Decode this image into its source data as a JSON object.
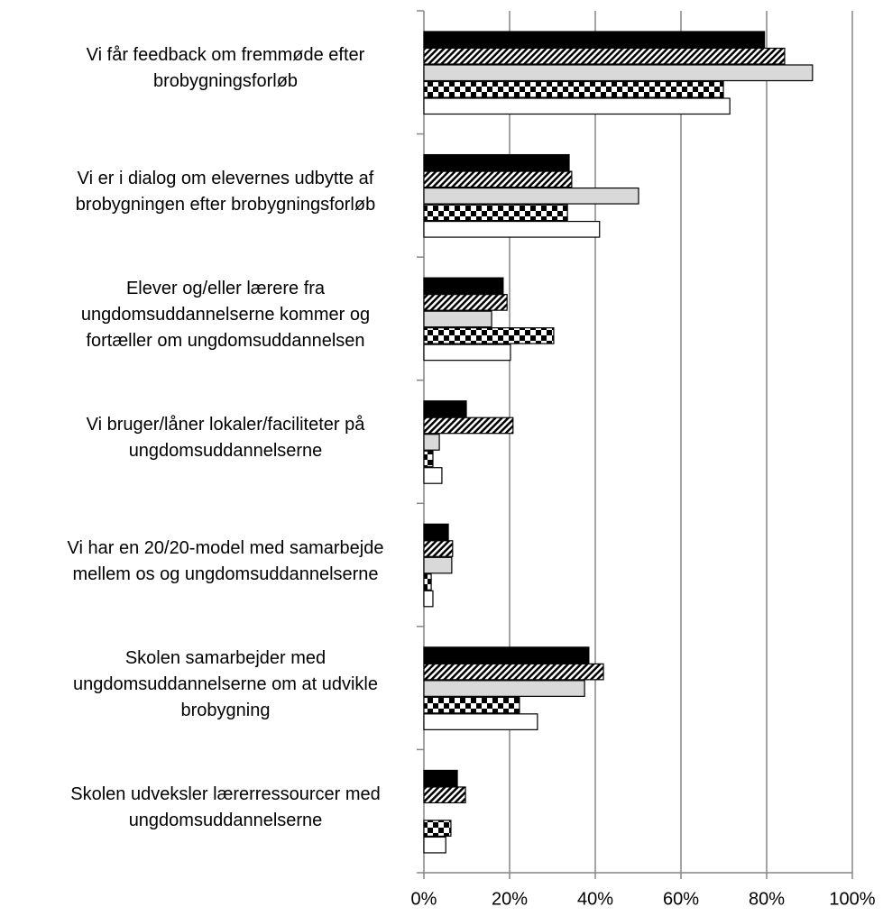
{
  "chart_data": {
    "type": "barh",
    "categories": [
      "Vi får feedback om fremmøde efter\nbrobygningsforløb",
      "Vi er i dialog om elevernes udbytte af\nbrobygningen efter brobygningsforløb",
      "Elever og/eller lærere fra\nungdomsuddannelserne kommer og\nfortæller om ungdomsuddannelsen",
      "Vi bruger/låner lokaler/faciliteter på\nungdomsuddannelserne",
      "Vi har en 20/20-model med samarbejde\nmellem os og ungdomsuddannelserne",
      "Skolen samarbejder med\nungdomsuddannelserne om at udvikle\nbrobygning",
      "Skolen udveksler lærerressourcer med\nungdomsuddannelserne"
    ],
    "series": [
      {
        "color": "#000000",
        "pattern": "solid",
        "values": [
          79.5,
          33.9,
          18.5,
          9.9,
          5.7,
          38.5,
          7.8
        ]
      },
      {
        "color": "#000000",
        "pattern": "diagonal",
        "values": [
          84.2,
          34.5,
          19.4,
          20.8,
          6.7,
          41.9,
          9.7
        ]
      },
      {
        "color": "#d9d9d9",
        "pattern": "solid",
        "values": [
          90.7,
          50.1,
          15.8,
          3.6,
          6.5,
          37.5,
          0
        ]
      },
      {
        "color": "#000000",
        "pattern": "checker",
        "values": [
          69.9,
          33.5,
          30.3,
          2.1,
          1.7,
          22.3,
          6.3
        ]
      },
      {
        "color": "#ffffff",
        "pattern": "solid",
        "values": [
          71.4,
          41.0,
          20.2,
          4.2,
          2.1,
          26.5,
          5.1
        ]
      }
    ],
    "xlim": [
      0,
      100
    ],
    "xticks": [
      {
        "value": 0,
        "label": "0%"
      },
      {
        "value": 20,
        "label": "20%"
      },
      {
        "value": 40,
        "label": "40%"
      },
      {
        "value": 60,
        "label": "60%"
      },
      {
        "value": 80,
        "label": "80%"
      },
      {
        "value": 100,
        "label": "100%"
      }
    ],
    "grid": true
  }
}
